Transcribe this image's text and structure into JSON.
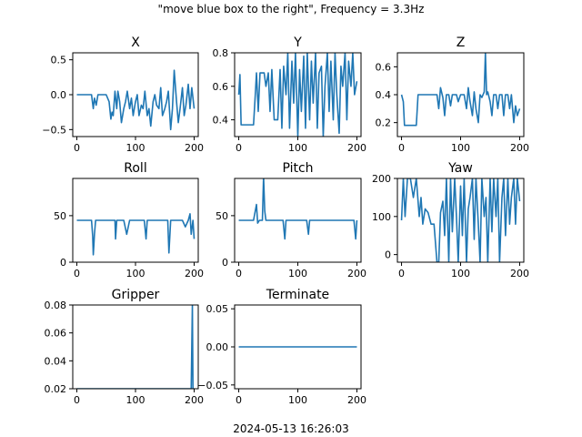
{
  "figure": {
    "suptitle": "\"move blue box to the right\", Frequency = 3.3Hz",
    "footer": "2024-05-13 16:26:03",
    "line_color": "#1f77b4"
  },
  "chart_data": [
    {
      "id": "x",
      "type": "line",
      "title": "X",
      "xlim": [
        -7,
        207
      ],
      "ylim": [
        -0.6,
        0.6
      ],
      "xticks": [
        0,
        100,
        200
      ],
      "xtick_labels": [
        "0",
        "100",
        "200"
      ],
      "yticks": [
        -0.5,
        0.0,
        0.5
      ],
      "ytick_labels": [
        "−0.5",
        "0.0",
        "0.5"
      ],
      "x": [
        0,
        5,
        10,
        15,
        20,
        25,
        28,
        30,
        33,
        36,
        40,
        45,
        50,
        55,
        58,
        60,
        62,
        65,
        68,
        70,
        73,
        76,
        80,
        83,
        86,
        90,
        93,
        96,
        100,
        103,
        106,
        110,
        113,
        116,
        120,
        123,
        126,
        130,
        133,
        136,
        140,
        143,
        146,
        150,
        153,
        156,
        160,
        163,
        166,
        170,
        173,
        176,
        180,
        183,
        186,
        190,
        193,
        196,
        200
      ],
      "y": [
        0,
        0,
        0,
        0,
        0,
        0,
        -0.2,
        -0.05,
        -0.15,
        0,
        0,
        0,
        0,
        -0.1,
        -0.35,
        -0.25,
        -0.3,
        0.05,
        -0.2,
        0.05,
        -0.1,
        -0.4,
        -0.2,
        -0.1,
        0.05,
        -0.2,
        -0.05,
        -0.3,
        -0.1,
        0,
        -0.3,
        -0.15,
        -0.2,
        0.05,
        -0.3,
        -0.2,
        -0.45,
        -0.1,
        0,
        -0.15,
        -0.2,
        0.1,
        -0.3,
        -0.2,
        -0.1,
        0.05,
        -0.5,
        -0.2,
        0.35,
        -0.1,
        -0.4,
        -0.2,
        0.1,
        -0.3,
        -0.15,
        0.15,
        -0.2,
        0.1,
        -0.2
      ]
    },
    {
      "id": "y",
      "type": "line",
      "title": "Y",
      "xlim": [
        -7,
        207
      ],
      "ylim": [
        0.3,
        0.8
      ],
      "xticks": [
        0,
        100,
        200
      ],
      "xtick_labels": [
        "0",
        "100",
        "200"
      ],
      "yticks": [
        0.4,
        0.6,
        0.8
      ],
      "ytick_labels": [
        "0.4",
        "0.6",
        "0.8"
      ],
      "x": [
        0,
        2,
        4,
        6,
        10,
        15,
        20,
        25,
        28,
        30,
        33,
        36,
        40,
        43,
        46,
        50,
        53,
        56,
        60,
        63,
        66,
        70,
        73,
        76,
        80,
        83,
        86,
        90,
        93,
        96,
        100,
        103,
        106,
        110,
        113,
        116,
        120,
        123,
        126,
        130,
        133,
        136,
        140,
        143,
        146,
        150,
        153,
        156,
        160,
        163,
        166,
        170,
        173,
        176,
        180,
        183,
        186,
        190,
        193,
        196,
        200
      ],
      "y": [
        0.55,
        0.67,
        0.37,
        0.37,
        0.37,
        0.37,
        0.37,
        0.37,
        0.55,
        0.68,
        0.45,
        0.68,
        0.68,
        0.68,
        0.6,
        0.68,
        0.45,
        0.7,
        0.4,
        0.4,
        0.4,
        0.7,
        0.35,
        0.72,
        0.55,
        0.8,
        0.35,
        0.75,
        0.5,
        0.8,
        0.3,
        0.7,
        0.45,
        0.78,
        0.35,
        0.8,
        0.4,
        0.75,
        0.5,
        0.8,
        0.35,
        0.68,
        0.72,
        0.3,
        0.6,
        0.8,
        0.45,
        0.75,
        0.4,
        0.8,
        0.55,
        0.32,
        0.72,
        0.6,
        0.8,
        0.4,
        0.75,
        0.6,
        0.8,
        0.55,
        0.63
      ]
    },
    {
      "id": "z",
      "type": "line",
      "title": "Z",
      "xlim": [
        -7,
        207
      ],
      "ylim": [
        0.1,
        0.7
      ],
      "xticks": [
        0,
        100,
        200
      ],
      "xtick_labels": [
        "0",
        "100",
        "200"
      ],
      "yticks": [
        0.2,
        0.4,
        0.6
      ],
      "ytick_labels": [
        "0.2",
        "0.4",
        "0.6"
      ],
      "x": [
        0,
        3,
        5,
        10,
        15,
        20,
        25,
        28,
        30,
        35,
        40,
        45,
        50,
        55,
        60,
        63,
        66,
        70,
        73,
        76,
        80,
        83,
        86,
        90,
        93,
        96,
        100,
        103,
        106,
        110,
        113,
        116,
        120,
        123,
        126,
        130,
        133,
        136,
        140,
        142,
        144,
        146,
        150,
        153,
        156,
        160,
        163,
        166,
        170,
        173,
        176,
        180,
        183,
        186,
        190,
        193,
        196,
        200
      ],
      "y": [
        0.4,
        0.35,
        0.18,
        0.18,
        0.18,
        0.18,
        0.18,
        0.4,
        0.4,
        0.4,
        0.4,
        0.4,
        0.4,
        0.4,
        0.4,
        0.3,
        0.45,
        0.38,
        0.25,
        0.4,
        0.4,
        0.32,
        0.4,
        0.4,
        0.4,
        0.35,
        0.4,
        0.4,
        0.4,
        0.3,
        0.45,
        0.35,
        0.25,
        0.42,
        0.3,
        0.2,
        0.4,
        0.38,
        0.42,
        0.7,
        0.4,
        0.42,
        0.35,
        0.25,
        0.4,
        0.4,
        0.3,
        0.4,
        0.4,
        0.25,
        0.4,
        0.4,
        0.3,
        0.4,
        0.2,
        0.32,
        0.25,
        0.3
      ]
    },
    {
      "id": "roll",
      "type": "line",
      "title": "Roll",
      "xlim": [
        -7,
        207
      ],
      "ylim": [
        0,
        90
      ],
      "xticks": [
        0,
        100,
        200
      ],
      "xtick_labels": [
        "0",
        "100",
        "200"
      ],
      "yticks": [
        0,
        50
      ],
      "ytick_labels": [
        "0",
        "50"
      ],
      "x": [
        0,
        10,
        20,
        25,
        27,
        28,
        29,
        30,
        32,
        35,
        40,
        50,
        60,
        65,
        66,
        68,
        70,
        75,
        80,
        85,
        90,
        95,
        100,
        110,
        115,
        118,
        120,
        122,
        125,
        130,
        140,
        150,
        155,
        157,
        160,
        165,
        170,
        175,
        180,
        185,
        190,
        193,
        195,
        198,
        200
      ],
      "y": [
        45,
        45,
        45,
        45,
        28,
        8,
        18,
        30,
        45,
        45,
        45,
        45,
        45,
        45,
        25,
        45,
        45,
        45,
        45,
        30,
        45,
        45,
        45,
        45,
        45,
        25,
        45,
        45,
        45,
        45,
        45,
        45,
        45,
        10,
        45,
        45,
        45,
        45,
        45,
        38,
        45,
        52,
        30,
        45,
        25
      ]
    },
    {
      "id": "pitch",
      "type": "line",
      "title": "Pitch",
      "xlim": [
        -7,
        207
      ],
      "ylim": [
        0,
        90
      ],
      "xticks": [
        0,
        100,
        200
      ],
      "xtick_labels": [
        "0",
        "100",
        "200"
      ],
      "yticks": [
        0,
        50
      ],
      "ytick_labels": [
        "0",
        "50"
      ],
      "x": [
        0,
        10,
        20,
        25,
        30,
        32,
        35,
        40,
        42,
        44,
        46,
        50,
        60,
        65,
        70,
        75,
        78,
        80,
        85,
        90,
        95,
        100,
        110,
        115,
        118,
        120,
        125,
        130,
        140,
        150,
        160,
        170,
        180,
        190,
        195,
        198,
        200
      ],
      "y": [
        45,
        45,
        45,
        45,
        62,
        42,
        45,
        45,
        92,
        55,
        45,
        45,
        45,
        45,
        45,
        45,
        25,
        45,
        45,
        45,
        45,
        45,
        45,
        45,
        30,
        45,
        45,
        45,
        45,
        45,
        45,
        45,
        45,
        45,
        45,
        25,
        45
      ]
    },
    {
      "id": "yaw",
      "type": "line",
      "title": "Yaw",
      "xlim": [
        -7,
        207
      ],
      "ylim": [
        -20,
        200
      ],
      "xticks": [
        0,
        100,
        200
      ],
      "xtick_labels": [
        "0",
        "100",
        "200"
      ],
      "yticks": [
        0,
        100,
        200
      ],
      "ytick_labels": [
        "0",
        "100",
        "200"
      ],
      "x": [
        0,
        3,
        6,
        10,
        15,
        20,
        25,
        30,
        33,
        36,
        40,
        45,
        50,
        55,
        60,
        63,
        66,
        70,
        73,
        76,
        80,
        83,
        86,
        90,
        93,
        96,
        100,
        103,
        106,
        110,
        113,
        116,
        120,
        123,
        126,
        130,
        133,
        136,
        140,
        143,
        146,
        150,
        153,
        156,
        160,
        163,
        166,
        170,
        173,
        176,
        180,
        183,
        186,
        190,
        193,
        196,
        200
      ],
      "y": [
        90,
        200,
        100,
        200,
        200,
        150,
        200,
        100,
        150,
        80,
        120,
        110,
        80,
        80,
        -20,
        -20,
        110,
        140,
        50,
        200,
        -20,
        200,
        60,
        200,
        100,
        -20,
        180,
        50,
        200,
        -20,
        120,
        150,
        200,
        40,
        200,
        80,
        -20,
        200,
        100,
        150,
        -20,
        200,
        60,
        200,
        100,
        200,
        -20,
        150,
        200,
        50,
        200,
        80,
        150,
        200,
        80,
        200,
        140
      ]
    },
    {
      "id": "gripper",
      "type": "line",
      "title": "Gripper",
      "xlim": [
        -7,
        207
      ],
      "ylim": [
        0.02,
        0.08
      ],
      "xticks": [
        0,
        100,
        200
      ],
      "xtick_labels": [
        "0",
        "100",
        "200"
      ],
      "yticks": [
        0.02,
        0.04,
        0.06,
        0.08
      ],
      "ytick_labels": [
        "0.02",
        "0.04",
        "0.06",
        "0.08"
      ],
      "x": [
        0,
        100,
        195,
        197,
        198,
        200
      ],
      "y": [
        0.02,
        0.02,
        0.02,
        0.08,
        0.02,
        0.02
      ]
    },
    {
      "id": "terminate",
      "type": "line",
      "title": "Terminate",
      "xlim": [
        -7,
        207
      ],
      "ylim": [
        -0.055,
        0.055
      ],
      "xticks": [
        0,
        100,
        200
      ],
      "xtick_labels": [
        "0",
        "100",
        "200"
      ],
      "yticks": [
        -0.05,
        0.0,
        0.05
      ],
      "ytick_labels": [
        "−0.05",
        "0.00",
        "0.05"
      ],
      "x": [
        0,
        200
      ],
      "y": [
        0,
        0
      ]
    }
  ]
}
